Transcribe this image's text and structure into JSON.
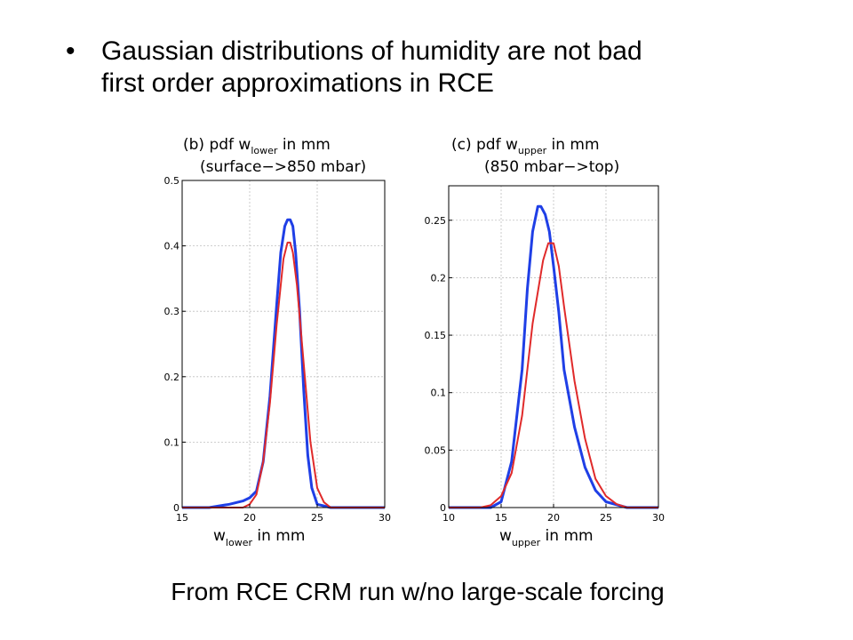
{
  "slide": {
    "bullet_marker": "•",
    "bullet_text": "Gaussian distributions of humidity are not bad\nfirst order approximations in RCE",
    "caption": "From RCE CRM run w/no large-scale forcing"
  },
  "colors": {
    "series_blue": "#1f3fe6",
    "series_red": "#e02a2a",
    "grid": "#bfbfbf"
  },
  "chart_data": [
    {
      "type": "line",
      "panel": "(b)",
      "title_prefix": "(b) pdf w",
      "title_sub": "lower",
      "title_suffix": " in mm",
      "title_line2": "(surface−>850 mbar)",
      "xlabel_main": "w",
      "xlabel_sub": "lower",
      "xlabel_suffix": " in mm",
      "xlim": [
        15,
        30
      ],
      "ylim": [
        0,
        0.5
      ],
      "xticks": [
        15,
        20,
        25,
        30
      ],
      "yticks": [
        0,
        0.1,
        0.2,
        0.3,
        0.4,
        0.5
      ],
      "grid": true,
      "series": [
        {
          "color": "#1f3fe6",
          "x": [
            15,
            17,
            18.5,
            19.5,
            20,
            20.5,
            21,
            21.5,
            22,
            22.3,
            22.6,
            22.8,
            23.0,
            23.2,
            23.4,
            23.7,
            24,
            24.3,
            24.6,
            25,
            26,
            30
          ],
          "y": [
            0,
            0,
            0.005,
            0.01,
            0.015,
            0.025,
            0.07,
            0.17,
            0.31,
            0.39,
            0.43,
            0.44,
            0.44,
            0.43,
            0.39,
            0.3,
            0.18,
            0.08,
            0.03,
            0.005,
            0,
            0
          ]
        },
        {
          "color": "#e02a2a",
          "x": [
            15,
            19.5,
            20,
            20.5,
            21,
            21.5,
            22,
            22.5,
            22.8,
            23.0,
            23.2,
            23.5,
            24,
            24.5,
            25,
            25.5,
            26,
            30
          ],
          "y": [
            0,
            0,
            0.005,
            0.02,
            0.07,
            0.16,
            0.28,
            0.38,
            0.405,
            0.405,
            0.39,
            0.34,
            0.22,
            0.1,
            0.03,
            0.008,
            0,
            0
          ]
        }
      ]
    },
    {
      "type": "line",
      "panel": "(c)",
      "title_prefix": "(c) pdf w",
      "title_sub": "upper",
      "title_suffix": " in mm",
      "title_line2": "(850 mbar−>top)",
      "xlabel_main": "w",
      "xlabel_sub": "upper",
      "xlabel_suffix": " in mm",
      "xlim": [
        10,
        30
      ],
      "ylim": [
        0,
        0.28
      ],
      "xticks": [
        10,
        15,
        20,
        25,
        30
      ],
      "yticks": [
        0,
        0.05,
        0.1,
        0.15,
        0.2,
        0.25
      ],
      "grid": true,
      "series": [
        {
          "color": "#1f3fe6",
          "x": [
            10,
            14,
            15,
            16,
            17,
            17.5,
            18,
            18.5,
            18.8,
            19.2,
            19.6,
            20,
            20.5,
            21,
            22,
            23,
            24,
            25,
            27,
            30
          ],
          "y": [
            0,
            0,
            0.005,
            0.04,
            0.12,
            0.19,
            0.24,
            0.262,
            0.262,
            0.255,
            0.24,
            0.21,
            0.17,
            0.12,
            0.07,
            0.035,
            0.015,
            0.005,
            0,
            0
          ]
        },
        {
          "color": "#e02a2a",
          "x": [
            10,
            13,
            14,
            15,
            16,
            17,
            18,
            19,
            19.5,
            20,
            20.5,
            21,
            22,
            23,
            24,
            25,
            26,
            27,
            30
          ],
          "y": [
            0,
            0,
            0.002,
            0.01,
            0.03,
            0.08,
            0.16,
            0.215,
            0.23,
            0.23,
            0.21,
            0.175,
            0.11,
            0.06,
            0.025,
            0.01,
            0.003,
            0,
            0
          ]
        }
      ]
    }
  ]
}
